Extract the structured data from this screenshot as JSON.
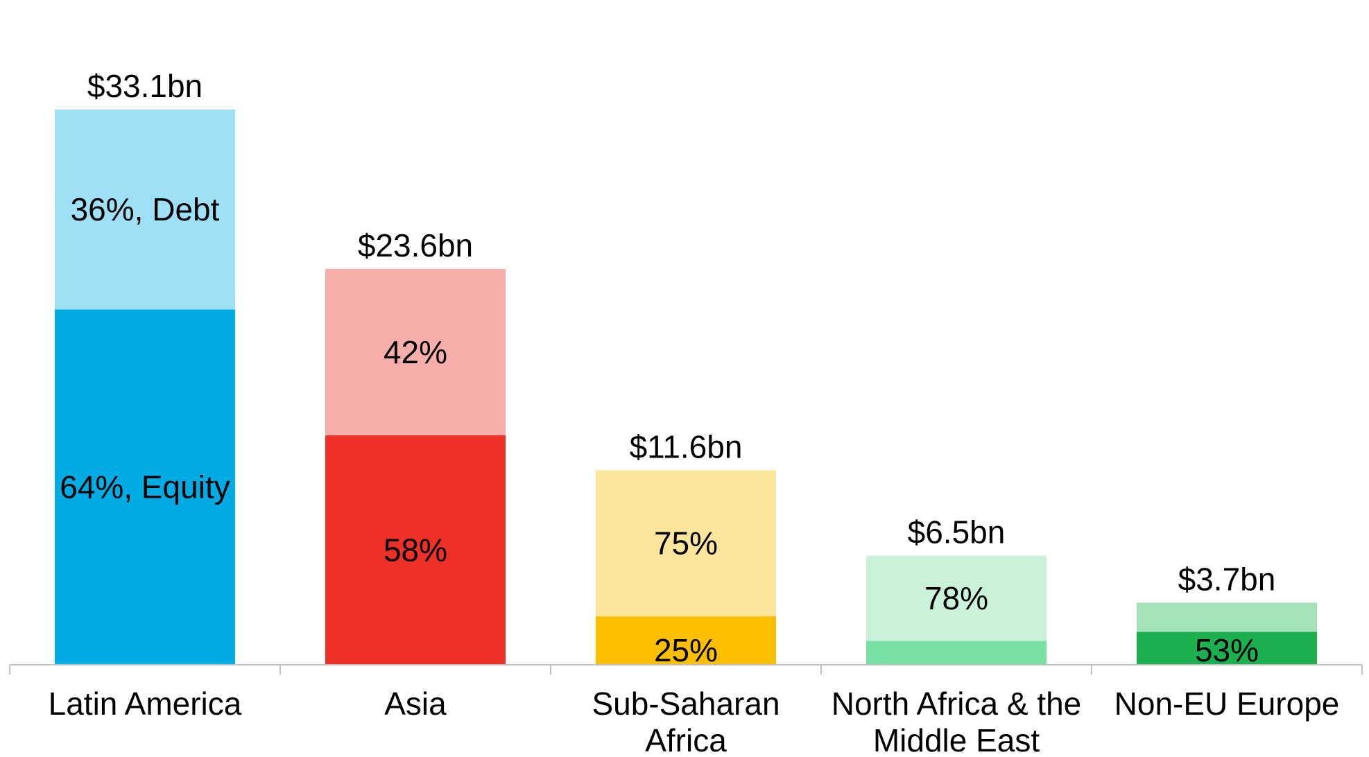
{
  "chart_data": {
    "type": "bar",
    "stacked": true,
    "categories": [
      [
        "Latin America"
      ],
      [
        "Asia"
      ],
      [
        "Sub-Saharan",
        "Africa"
      ],
      [
        "North Africa & the",
        "Middle East"
      ],
      [
        "Non-EU Europe"
      ]
    ],
    "totals": [
      33.1,
      23.6,
      11.6,
      6.5,
      3.7
    ],
    "total_labels": [
      "$33.1bn",
      "$23.6bn",
      "$11.6bn",
      "$6.5bn",
      "$3.7bn"
    ],
    "series": [
      {
        "key": "equity",
        "share_pct": [
          64,
          58,
          25,
          22,
          53
        ],
        "labels": [
          "64%, Equity",
          "58%",
          "25%",
          "",
          "53%"
        ],
        "colors": [
          "#00ace3",
          "#ee3127",
          "#fdc000",
          "#79e0a3",
          "#1db04f"
        ]
      },
      {
        "key": "debt",
        "share_pct": [
          36,
          42,
          75,
          78,
          47
        ],
        "labels": [
          "36%, Debt",
          "42%",
          "75%",
          "78%",
          ""
        ],
        "colors": [
          "#9ee1f7",
          "#f7aeaa",
          "#fde69b",
          "#c9f2d9",
          "#a5e2b9"
        ]
      }
    ],
    "ylim": [
      0,
      35
    ],
    "axis_color": "#bfbfbf",
    "grid": false,
    "legend": "none"
  }
}
